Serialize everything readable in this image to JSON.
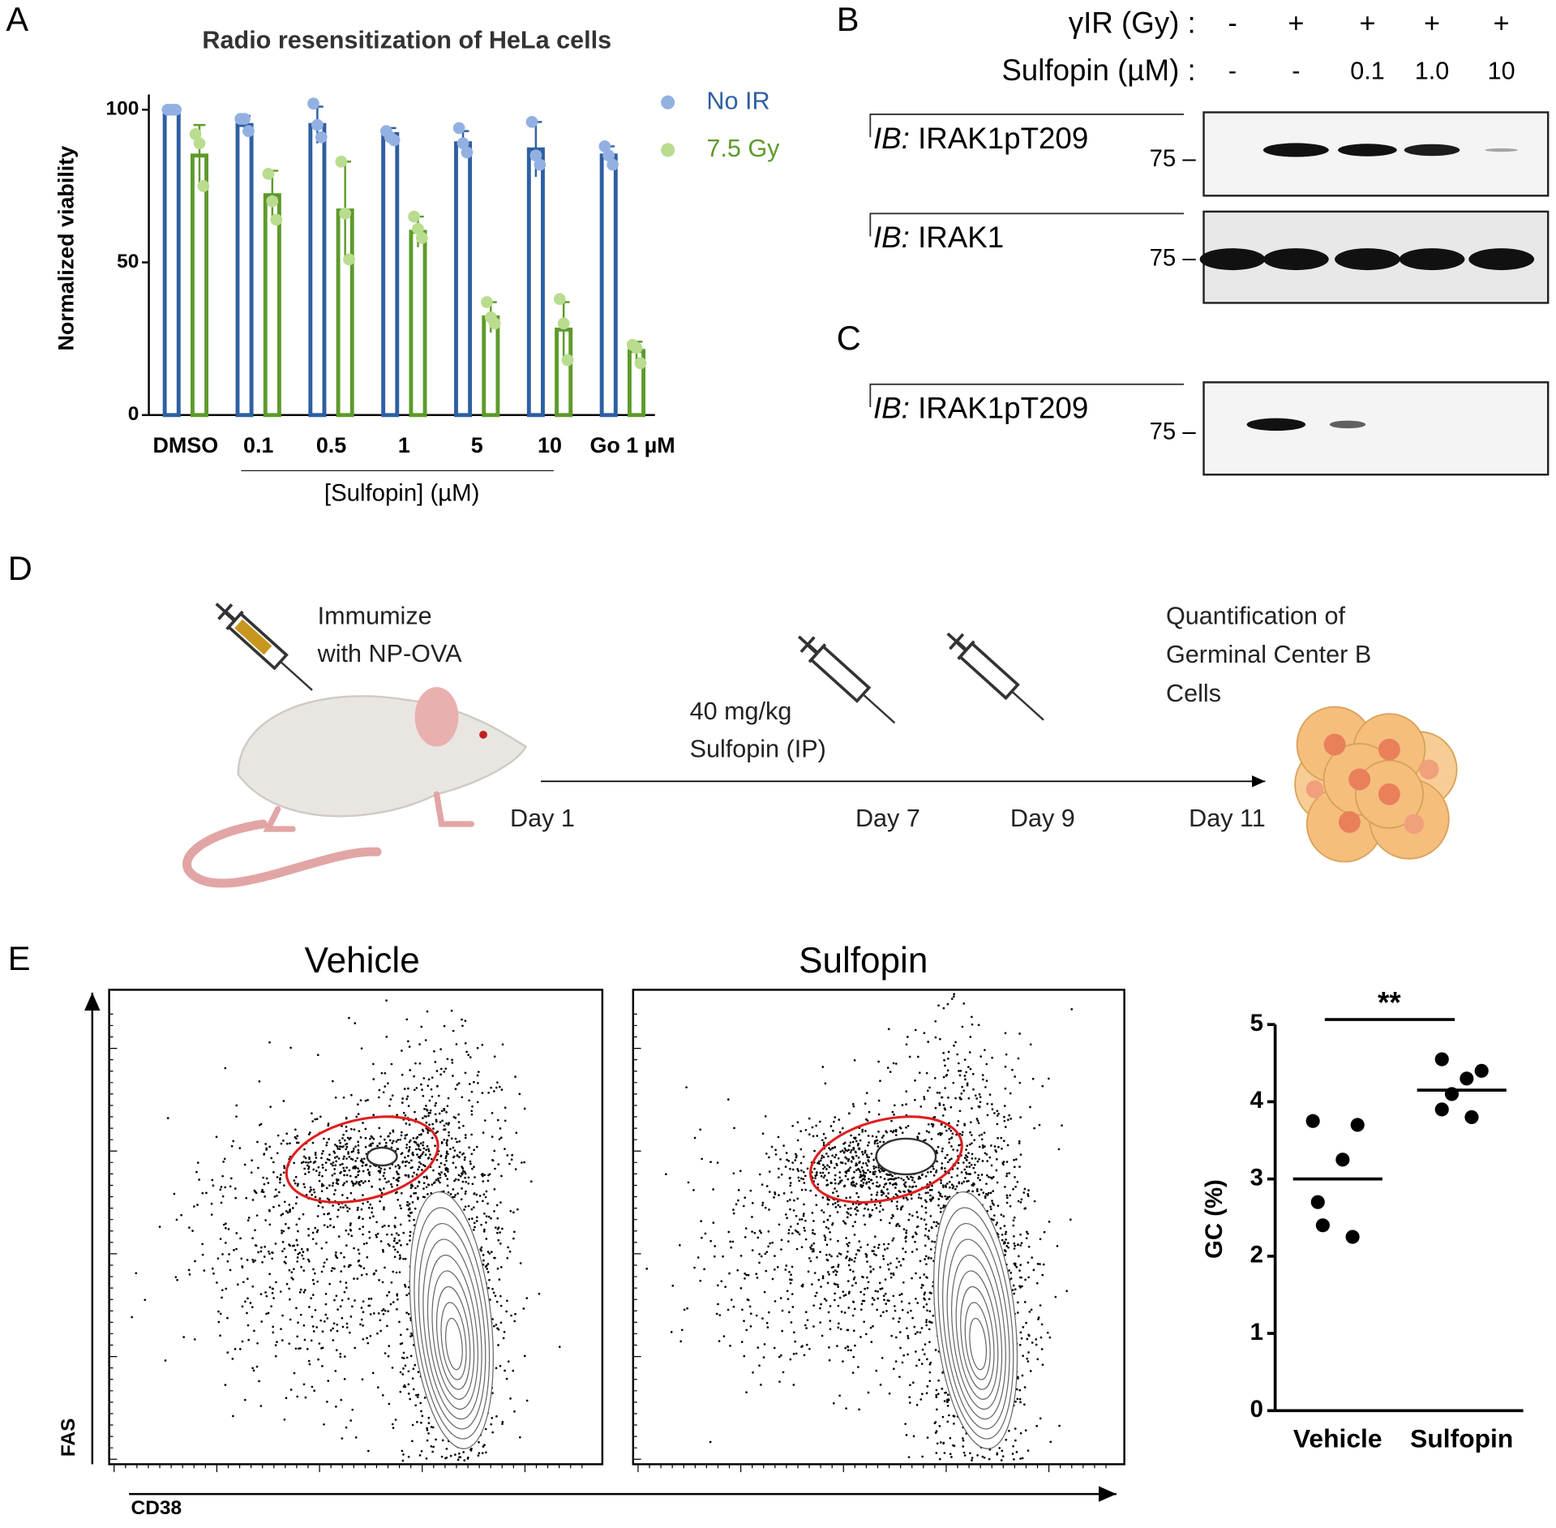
{
  "panel_labels": [
    "A",
    "B",
    "C",
    "D",
    "E"
  ],
  "chart_data": [
    {
      "type": "bar",
      "title": "Radio resensitization of HeLa cells",
      "y_label": "Normalized viability",
      "x_label": "[Sulfopin] (µM)",
      "categories": [
        "DMSO",
        "0.1",
        "0.5",
        "1",
        "5",
        "10",
        "Go 1 µM"
      ],
      "series": [
        {
          "name": "No IR",
          "color": "#2e5fa3",
          "point_color": "#92b1e2",
          "values": [
            100,
            95,
            95,
            92,
            89,
            87,
            85
          ],
          "errors": [
            0.5,
            3,
            6,
            2,
            4,
            9,
            3
          ],
          "points": [
            [
              100,
              100,
              100
            ],
            [
              97,
              97,
              93
            ],
            [
              102,
              95,
              91
            ],
            [
              93,
              91,
              90
            ],
            [
              94,
              89,
              86
            ],
            [
              96,
              85,
              82
            ],
            [
              88,
              85,
              82
            ]
          ]
        },
        {
          "name": "7.5 Gy",
          "color": "#5e9a2c",
          "point_color": "#b9dc8f",
          "values": [
            85,
            72,
            67,
            60,
            32,
            28,
            21
          ],
          "errors": [
            10,
            8,
            16,
            5,
            5,
            9,
            3
          ],
          "points": [
            [
              92,
              89,
              75
            ],
            [
              79,
              70,
              64
            ],
            [
              83,
              66,
              51
            ],
            [
              65,
              61,
              58
            ],
            [
              37,
              32,
              30
            ],
            [
              38,
              30,
              18
            ],
            [
              23,
              22,
              17
            ]
          ]
        }
      ],
      "ylim": [
        0,
        105
      ],
      "yticks": [
        0,
        50,
        100
      ],
      "legend": "top-right"
    },
    {
      "type": "dot",
      "y_label": "GC (%)",
      "categories": [
        "Vehicle",
        "Sulfopin"
      ],
      "color": "#000000",
      "points": [
        [
          3.75,
          3.7,
          3.25,
          2.7,
          2.4,
          2.25
        ],
        [
          4.55,
          4.4,
          4.3,
          4.1,
          3.9,
          3.8
        ]
      ],
      "means": [
        3.0,
        4.15
      ],
      "annotation": "**",
      "ylim": [
        0,
        5
      ],
      "yticks": [
        0,
        1,
        2,
        3,
        4,
        5
      ]
    }
  ],
  "blots": {
    "ir_label": "γIR (Gy) :",
    "sulfopin_label": "Sulfopin (µM) :",
    "ir_lanes": [
      "-",
      "+",
      "+",
      "+",
      "+"
    ],
    "sulfopin_lanes": [
      "-",
      "-",
      "0.1",
      "1.0",
      "10"
    ],
    "panels": [
      {
        "prefix": "IB:",
        "target": "IRAK1pT209",
        "marker": "75 –"
      },
      {
        "prefix": "IB:",
        "target": "IRAK1",
        "marker": "75 –"
      },
      {
        "prefix": "IB:",
        "target": "IRAK1pT209",
        "marker": "75 –"
      }
    ]
  },
  "timeline": {
    "immunize": [
      "Immumize",
      "with NP-OVA"
    ],
    "dose": [
      "40 mg/kg",
      "Sulfopin (IP)"
    ],
    "days": [
      "Day 1",
      "Day 7",
      "Day 9",
      "Day 11"
    ],
    "readout": [
      "Quantification of",
      "Germinal Center B",
      "Cells"
    ]
  },
  "flow": {
    "titles": [
      "Vehicle",
      "Sulfopin"
    ],
    "y_label": "FAS",
    "x_label": "CD38"
  }
}
